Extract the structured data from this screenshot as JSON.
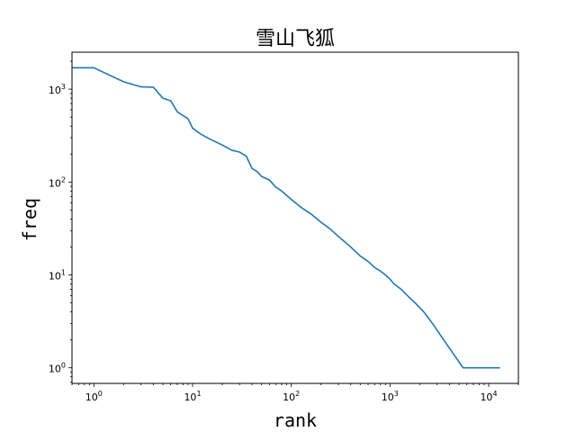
{
  "chart_data": {
    "type": "line",
    "title": "雪山飞狐",
    "xlabel": "rank",
    "ylabel": "freq",
    "xscale": "log",
    "yscale": "log",
    "xlim": [
      0.6,
      20000
    ],
    "ylim": [
      0.68,
      2500
    ],
    "xticks": [
      {
        "base": "10",
        "exp": "0",
        "value": 1
      },
      {
        "base": "10",
        "exp": "1",
        "value": 10
      },
      {
        "base": "10",
        "exp": "2",
        "value": 100
      },
      {
        "base": "10",
        "exp": "3",
        "value": 1000
      },
      {
        "base": "10",
        "exp": "4",
        "value": 10000
      }
    ],
    "yticks": [
      {
        "base": "10",
        "exp": "0",
        "value": 1
      },
      {
        "base": "10",
        "exp": "1",
        "value": 10
      },
      {
        "base": "10",
        "exp": "2",
        "value": 100
      },
      {
        "base": "10",
        "exp": "3",
        "value": 1000
      }
    ],
    "grid": false,
    "color": "#1f77b4",
    "series": [
      {
        "x": [
          0.6,
          1,
          2,
          3,
          4,
          5,
          6,
          7,
          8,
          9,
          10,
          12,
          15,
          20,
          25,
          30,
          35,
          40,
          45,
          50,
          60,
          70,
          80,
          100,
          130,
          160,
          200,
          250,
          300,
          400,
          500,
          600,
          700,
          800,
          900,
          1000,
          1100,
          1300,
          1500,
          1800,
          2200,
          2700,
          3500,
          5500,
          13000
        ],
        "y": [
          1700,
          1700,
          1200,
          1060,
          1050,
          800,
          750,
          570,
          520,
          480,
          380,
          330,
          290,
          250,
          220,
          210,
          190,
          140,
          130,
          115,
          105,
          88,
          80,
          65,
          52,
          45,
          37,
          31,
          26,
          20,
          16,
          14,
          12,
          11,
          10,
          9,
          8,
          7,
          6,
          5,
          4,
          3,
          2,
          1,
          1
        ]
      }
    ]
  }
}
